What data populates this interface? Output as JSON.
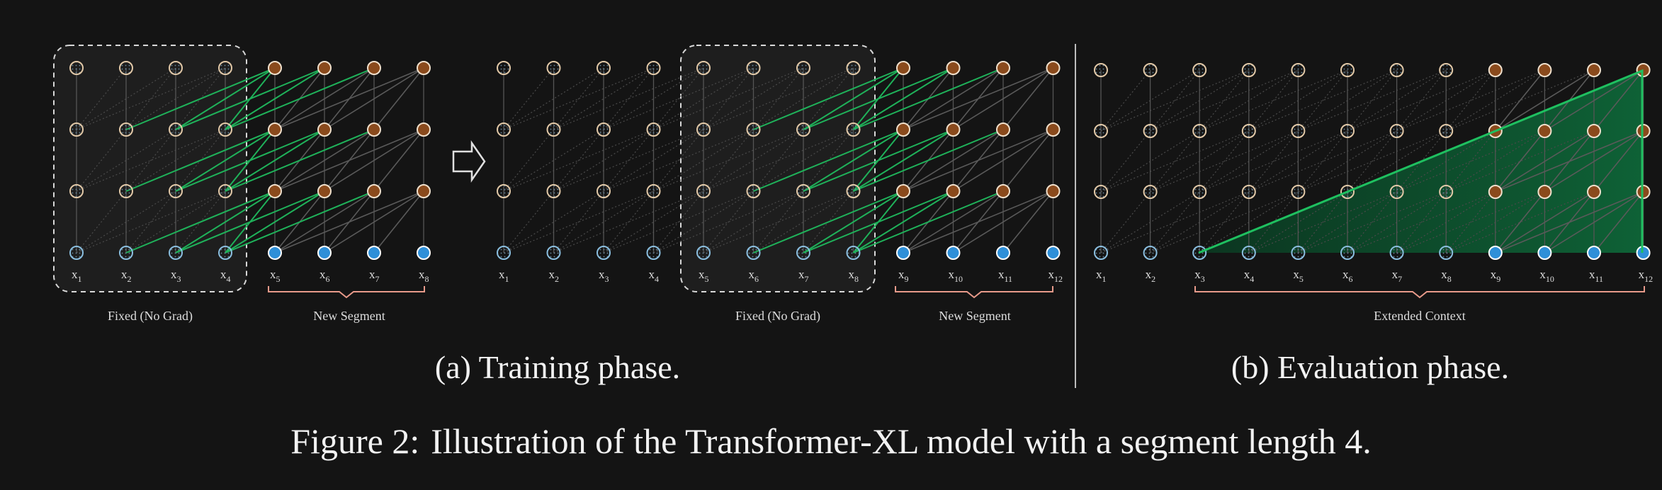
{
  "figure": {
    "label": "Figure 2:",
    "caption": "Illustration of the Transformer-XL model with a segment length 4."
  },
  "training": {
    "subcaption": "(a) Training phase.",
    "left": {
      "tokens": [
        "x1",
        "x2",
        "x3",
        "x4",
        "x5",
        "x6",
        "x7",
        "x8"
      ],
      "fixed_label": "Fixed (No Grad)",
      "new_label": "New Segment"
    },
    "right": {
      "tokens": [
        "x1",
        "x2",
        "x3",
        "x4",
        "x5",
        "x6",
        "x7",
        "x8",
        "x9",
        "x10",
        "x11",
        "x12"
      ],
      "fixed_label": "Fixed (No Grad)",
      "new_label": "New Segment"
    }
  },
  "evaluation": {
    "subcaption": "(b) Evaluation phase.",
    "tokens": [
      "x1",
      "x2",
      "x3",
      "x4",
      "x5",
      "x6",
      "x7",
      "x8",
      "x9",
      "x10",
      "x11",
      "x12"
    ],
    "context_label": "Extended Context"
  },
  "colors": {
    "background": "#141414",
    "hidden_fixed": "#e2c9a8",
    "hidden_new": "#8a4a1c",
    "input_fixed": "#8bbfe0",
    "input_new": "#2e8fd8",
    "green": "#1fb25a",
    "brace": "#e89a8a"
  }
}
